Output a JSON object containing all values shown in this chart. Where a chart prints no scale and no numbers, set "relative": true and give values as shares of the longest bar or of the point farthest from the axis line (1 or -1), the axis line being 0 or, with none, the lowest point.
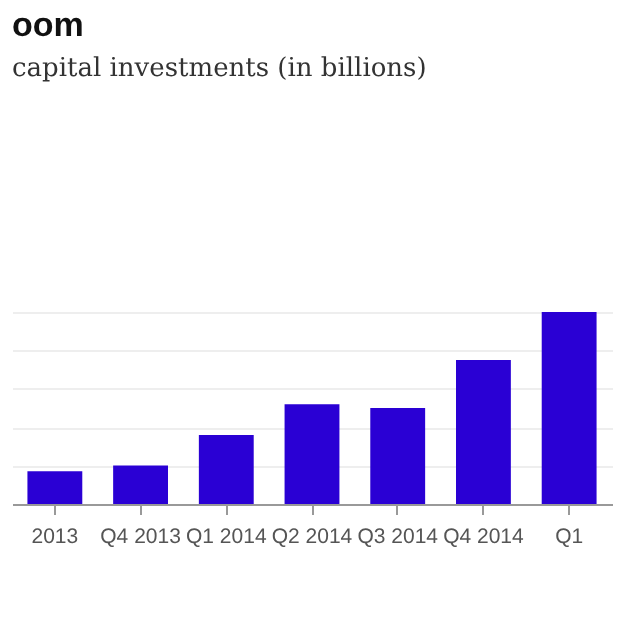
{
  "chart_data": {
    "type": "bar",
    "title": "oom",
    "subtitle": "capital investments (in billions)",
    "relative": true,
    "grid": "y",
    "categories": [
      "2013",
      "Q4 2013",
      "Q1 2014",
      "Q2 2014",
      "Q3 2014",
      "Q4 2014",
      "Q1"
    ],
    "values": [
      0.17,
      0.2,
      0.36,
      0.52,
      0.5,
      0.75,
      1
    ],
    "color": "#2a00d4"
  }
}
